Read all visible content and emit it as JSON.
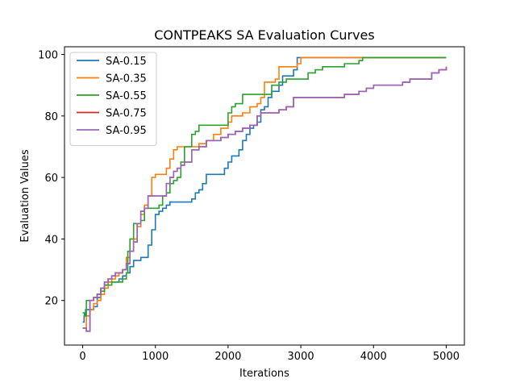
{
  "chart_data": {
    "type": "line",
    "title": "CONTPEAKS SA Evaluation Curves",
    "xlabel": "Iterations",
    "ylabel": "Evaluation Values",
    "xlim": [
      -250,
      5250
    ],
    "ylim": [
      5.5,
      102.5
    ],
    "xticks": [
      0,
      1000,
      2000,
      3000,
      4000,
      5000
    ],
    "yticks": [
      20,
      40,
      60,
      80,
      100
    ],
    "grid": false,
    "legend_position": "top-left",
    "series": [
      {
        "name": "SA-0.15",
        "color": "#1f77b4",
        "x": [
          0,
          20,
          40,
          60,
          80,
          100,
          150,
          200,
          250,
          300,
          350,
          400,
          450,
          500,
          550,
          600,
          650,
          700,
          750,
          800,
          850,
          900,
          950,
          1000,
          1050,
          1100,
          1150,
          1200,
          1300,
          1400,
          1500,
          1550,
          1600,
          1650,
          1700,
          1800,
          1900,
          1950,
          2000,
          2050,
          2100,
          2150,
          2200,
          2250,
          2300,
          2350,
          2400,
          2450,
          2500,
          2550,
          2600,
          2650,
          2700,
          2750,
          2800,
          2850,
          2900,
          2950,
          3000,
          3100,
          3500,
          4000,
          4500,
          5000
        ],
        "y": [
          13,
          15,
          17,
          17,
          17,
          17,
          18,
          21,
          24,
          25,
          26,
          26,
          26,
          27,
          28,
          29,
          31,
          33,
          33,
          34,
          34,
          38,
          43,
          48,
          49,
          50,
          51,
          52,
          52,
          52,
          53,
          55,
          56,
          58,
          61,
          61,
          61,
          63,
          65,
          67,
          67,
          69,
          72,
          74,
          76,
          77,
          78,
          82,
          83,
          86,
          88,
          88,
          90,
          93,
          93,
          93,
          95,
          99,
          99,
          99,
          99,
          99,
          99,
          99
        ]
      },
      {
        "name": "SA-0.35",
        "color": "#ff7f0e",
        "x": [
          0,
          50,
          100,
          150,
          200,
          250,
          300,
          350,
          400,
          450,
          500,
          550,
          600,
          650,
          700,
          750,
          800,
          850,
          900,
          950,
          1000,
          1100,
          1150,
          1200,
          1250,
          1300,
          1400,
          1500,
          1600,
          1700,
          1800,
          1900,
          2000,
          2050,
          2100,
          2200,
          2300,
          2400,
          2450,
          2500,
          2550,
          2600,
          2650,
          2700,
          2800,
          2950,
          3000,
          3500,
          4000,
          4500,
          5000
        ],
        "y": [
          11,
          15,
          17,
          19,
          20,
          22,
          24,
          26,
          27,
          28,
          29,
          30,
          34,
          36,
          40,
          44,
          48,
          51,
          54,
          60,
          61,
          61,
          63,
          66,
          69,
          70,
          70,
          70,
          71,
          72,
          74,
          76,
          78,
          80,
          80,
          81,
          83,
          84,
          86,
          91,
          91,
          91,
          92,
          96,
          96,
          97,
          99,
          99,
          99,
          99,
          99
        ]
      },
      {
        "name": "SA-0.55",
        "color": "#2ca02c",
        "x": [
          0,
          25,
          50,
          100,
          150,
          200,
          250,
          300,
          350,
          400,
          450,
          500,
          550,
          600,
          620,
          650,
          700,
          750,
          800,
          850,
          900,
          950,
          1000,
          1050,
          1100,
          1150,
          1200,
          1250,
          1300,
          1350,
          1400,
          1450,
          1500,
          1550,
          1600,
          1700,
          1800,
          1900,
          2000,
          2050,
          2100,
          2150,
          2200,
          2300,
          2400,
          2500,
          2600,
          2700,
          2800,
          2900,
          3000,
          3100,
          3200,
          3300,
          3400,
          3500,
          3600,
          3700,
          3800,
          3850,
          4000,
          4500,
          5000
        ],
        "y": [
          16,
          15,
          20,
          20,
          21,
          22,
          23,
          25,
          25,
          26,
          26,
          26,
          27,
          29,
          36,
          40,
          45,
          45,
          46,
          50,
          50,
          50,
          50,
          51,
          54,
          55,
          58,
          59,
          60,
          65,
          70,
          70,
          74,
          75,
          77,
          77,
          77,
          77,
          81,
          83,
          84,
          84,
          87,
          87,
          87,
          87,
          90,
          91,
          92,
          92,
          92,
          94,
          95,
          96,
          96,
          96,
          97,
          97,
          98,
          99,
          99,
          99,
          99
        ]
      },
      {
        "name": "SA-0.75",
        "color": "#d62728",
        "x": [
          0,
          50,
          100,
          150,
          200,
          250,
          300,
          350,
          400,
          450,
          500,
          550,
          600,
          650,
          700,
          750,
          800,
          850,
          900,
          1000,
          1100,
          1150,
          1200,
          1250,
          1300,
          1350,
          1400,
          1500,
          1600,
          1700,
          1800,
          1900,
          2000,
          2100,
          2200,
          2300,
          2400,
          2450,
          2500,
          2600,
          2700,
          2800,
          2900,
          3000,
          3200,
          3400,
          3500,
          3600,
          3700,
          3800,
          3900,
          4000,
          4200,
          4400,
          4500,
          4800,
          4900,
          5000
        ],
        "y": [
          11,
          10,
          20,
          21,
          22,
          24,
          26,
          27,
          28,
          29,
          29,
          30,
          32,
          36,
          39,
          45,
          49,
          50,
          54,
          54,
          54,
          58,
          60,
          62,
          63,
          64,
          65,
          69,
          70,
          72,
          72,
          73,
          74,
          75,
          76,
          77,
          80,
          81,
          81,
          81,
          82,
          83,
          86,
          86,
          86,
          86,
          86,
          87,
          87,
          88,
          89,
          90,
          90,
          91,
          92,
          94,
          95,
          96
        ]
      },
      {
        "name": "SA-0.95",
        "color": "#9467bd",
        "x": [
          0,
          50,
          100,
          150,
          200,
          250,
          300,
          350,
          400,
          450,
          500,
          550,
          600,
          650,
          700,
          750,
          800,
          850,
          900,
          1000,
          1100,
          1150,
          1200,
          1250,
          1300,
          1350,
          1400,
          1500,
          1600,
          1700,
          1800,
          1900,
          2000,
          2100,
          2200,
          2300,
          2400,
          2450,
          2500,
          2600,
          2700,
          2800,
          2900,
          3000,
          3200,
          3400,
          3500,
          3600,
          3700,
          3800,
          3900,
          4000,
          4200,
          4400,
          4500,
          4800,
          4900,
          5000
        ],
        "y": [
          11,
          10,
          20,
          21,
          22,
          24,
          26,
          27,
          28,
          29,
          29,
          30,
          32,
          36,
          39,
          45,
          49,
          50,
          54,
          54,
          54,
          58,
          60,
          62,
          63,
          64,
          65,
          69,
          70,
          72,
          72,
          73,
          74,
          75,
          76,
          77,
          80,
          81,
          81,
          81,
          82,
          83,
          86,
          86,
          86,
          86,
          86,
          87,
          87,
          88,
          89,
          90,
          90,
          91,
          92,
          94,
          95,
          96
        ]
      }
    ]
  }
}
